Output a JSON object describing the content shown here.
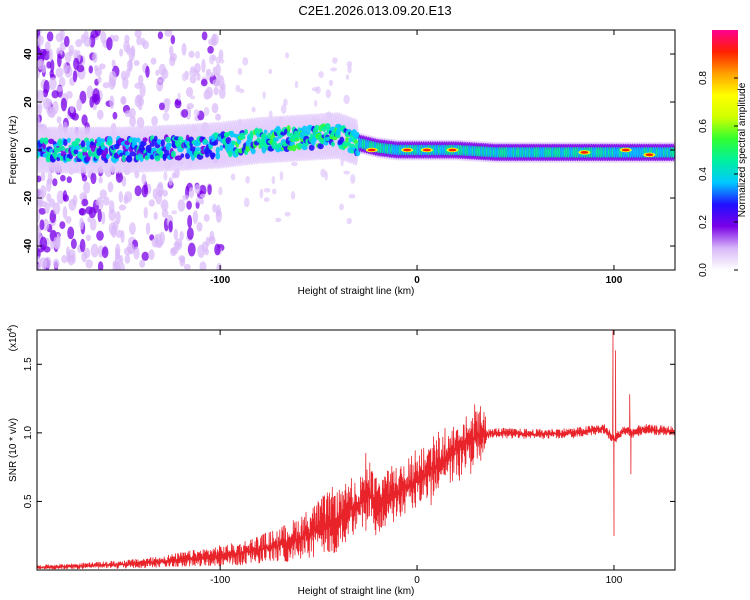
{
  "figure": {
    "title": "C2E1.2026.013.09.20.E13"
  },
  "chart_data": [
    {
      "type": "heatmap",
      "title": "C2E1.2026.013.09.20.E13",
      "xlabel": "Height of straight line (km)",
      "ylabel": "Frequency (Hz)",
      "xlim": [
        -193,
        131
      ],
      "ylim": [
        -50,
        50
      ],
      "xticks": [
        -100,
        0,
        100
      ],
      "xtick_labels": [
        "-100",
        "0",
        "100"
      ],
      "yticks": [
        -40,
        -20,
        0,
        20,
        40
      ],
      "ytick_labels": [
        "-40",
        "-20",
        "0",
        "20",
        "40"
      ],
      "colorbar": {
        "label": "Normalized spectral amplitude",
        "range": [
          0,
          1
        ],
        "ticks": [
          0.0,
          0.2,
          0.4,
          0.6,
          0.8
        ],
        "tick_labels": [
          "0.0",
          "0.2",
          "0.4",
          "0.6",
          "0.8"
        ],
        "colormap": [
          "#ffffff",
          "#d8b8f8",
          "#7a00e8",
          "#2010ff",
          "#00c8ff",
          "#00f0a0",
          "#30ff30",
          "#d0ff00",
          "#ffff00",
          "#ffa000",
          "#ff2000",
          "#ff0090"
        ]
      },
      "ridge": {
        "description_points_x": [
          -193,
          -150,
          -120,
          -100,
          -80,
          -60,
          -40,
          -30,
          -20,
          -10,
          0,
          20,
          40,
          60,
          80,
          100,
          131
        ],
        "center_frequency": [
          0,
          0,
          1,
          2,
          4,
          5,
          6,
          3,
          1,
          0,
          0,
          0,
          -1,
          -1,
          -1,
          -1,
          -1
        ]
      },
      "highlights": [
        {
          "x": -23,
          "y": 0
        },
        {
          "x": -5,
          "y": 0
        },
        {
          "x": 5,
          "y": 0
        },
        {
          "x": 18,
          "y": 0
        },
        {
          "x": 85,
          "y": -1
        },
        {
          "x": 106,
          "y": 0
        },
        {
          "x": 118,
          "y": -2
        }
      ]
    },
    {
      "type": "line",
      "xlabel": "Height of straight line (km)",
      "ylabel": "SNR (10 * v/v)",
      "y_multiplier": "(x10",
      "y_exponent": "4",
      "y_multiplier_close": ")",
      "xlim": [
        -193,
        131
      ],
      "ylim": [
        0,
        1.75
      ],
      "xticks": [
        -100,
        0,
        100
      ],
      "xtick_labels": [
        "-100",
        "0",
        "100"
      ],
      "yticks": [
        0.5,
        1.0,
        1.5
      ],
      "ytick_labels": [
        "0.5",
        "1.0",
        "1.5"
      ],
      "line_color": "#e8232a",
      "series": [
        {
          "name": "SNR",
          "x": [
            -193,
            -170,
            -150,
            -130,
            -110,
            -90,
            -70,
            -60,
            -50,
            -40,
            -30,
            -25,
            -20,
            -10,
            0,
            10,
            20,
            30,
            40,
            60,
            80,
            90,
            95,
            100,
            105,
            110,
            115,
            120,
            131
          ],
          "y": [
            0.02,
            0.03,
            0.04,
            0.06,
            0.09,
            0.12,
            0.18,
            0.23,
            0.3,
            0.38,
            0.48,
            0.55,
            0.5,
            0.56,
            0.66,
            0.76,
            0.88,
            0.97,
            1.0,
            0.99,
            1.0,
            1.02,
            1.03,
            0.95,
            1.02,
            1.0,
            1.03,
            1.02,
            1.01
          ]
        }
      ],
      "spikes": [
        {
          "x": -26,
          "y": 0.85
        },
        {
          "x": -24,
          "y": 0.78
        },
        {
          "x": 99.5,
          "y": 1.75
        },
        {
          "x": 100,
          "y": 0.25
        },
        {
          "x": 100.8,
          "y": 1.6
        },
        {
          "x": 108,
          "y": 1.28
        },
        {
          "x": 108.6,
          "y": 0.7
        }
      ]
    }
  ]
}
